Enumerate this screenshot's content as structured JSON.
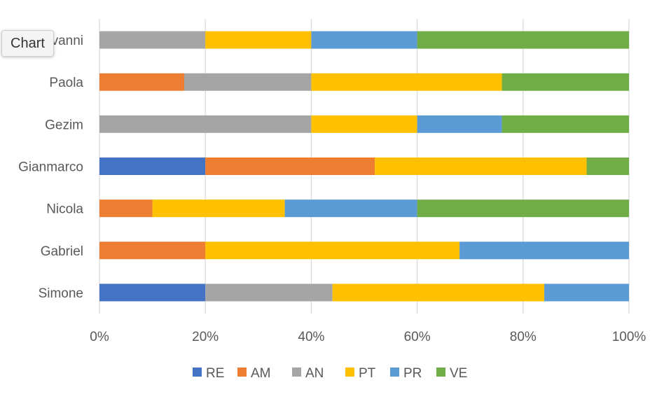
{
  "tooltip": {
    "label": "Chart"
  },
  "chart_data": {
    "type": "bar",
    "orientation": "horizontal",
    "stacked": "percent",
    "categories": [
      "Simone",
      "Gabriel",
      "Nicola",
      "Gianmarco",
      "Gezim",
      "Paola",
      "Giovanni"
    ],
    "series": [
      {
        "name": "RE",
        "color": "#4472C4",
        "values": [
          20,
          0,
          0,
          20,
          0,
          0,
          0
        ]
      },
      {
        "name": "AM",
        "color": "#ED7D31",
        "values": [
          0,
          20,
          10,
          32,
          0,
          16,
          0
        ]
      },
      {
        "name": "AN",
        "color": "#A5A5A5",
        "values": [
          24,
          0,
          0,
          0,
          40,
          24,
          20
        ]
      },
      {
        "name": "PT",
        "color": "#FFC000",
        "values": [
          40,
          48,
          25,
          40,
          20,
          36,
          20
        ]
      },
      {
        "name": "PR",
        "color": "#5B9BD5",
        "values": [
          16,
          32,
          25,
          0,
          16,
          0,
          20
        ]
      },
      {
        "name": "VE",
        "color": "#70AD47",
        "values": [
          0,
          0,
          40,
          8,
          24,
          24,
          40
        ]
      }
    ],
    "x_ticks": [
      "0%",
      "20%",
      "40%",
      "60%",
      "80%",
      "100%"
    ],
    "xlim": [
      0,
      100
    ],
    "grid": "vertical",
    "legend_position": "bottom",
    "title": "",
    "xlabel": "",
    "ylabel": ""
  }
}
